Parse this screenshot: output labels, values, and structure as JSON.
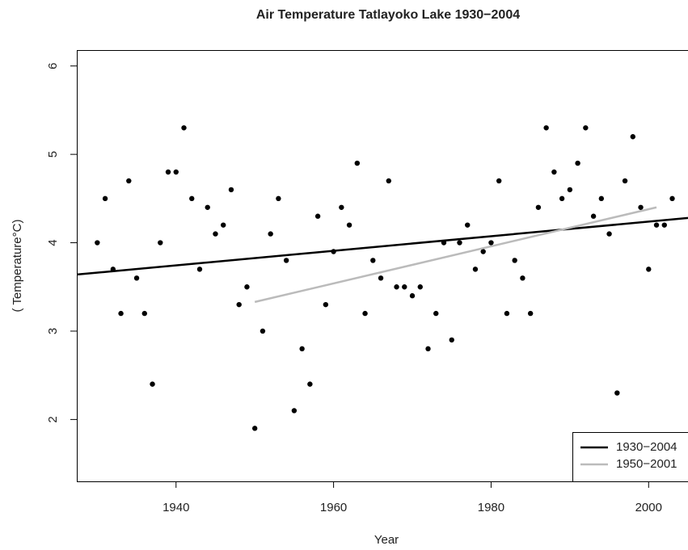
{
  "chart_data": {
    "type": "scatter",
    "title": "Air Temperature Tatlayoko Lake 1930−2004",
    "x_label": "Year",
    "y_label": "( Temperature°C)",
    "x": [
      1930,
      1931,
      1932,
      1933,
      1934,
      1935,
      1936,
      1937,
      1938,
      1939,
      1940,
      1941,
      1942,
      1943,
      1944,
      1945,
      1946,
      1947,
      1948,
      1949,
      1950,
      1951,
      1952,
      1953,
      1954,
      1955,
      1956,
      1957,
      1958,
      1959,
      1960,
      1961,
      1962,
      1963,
      1964,
      1965,
      1966,
      1967,
      1968,
      1969,
      1970,
      1971,
      1972,
      1973,
      1974,
      1975,
      1976,
      1977,
      1978,
      1979,
      1980,
      1981,
      1982,
      1983,
      1984,
      1985,
      1986,
      1987,
      1988,
      1989,
      1990,
      1991,
      1992,
      1993,
      1994,
      1995,
      1996,
      1997,
      1998,
      1999,
      2000,
      2001,
      2002,
      2003
    ],
    "values": [
      4.0,
      4.5,
      3.7,
      3.2,
      4.7,
      3.6,
      3.2,
      2.4,
      4.0,
      4.8,
      4.8,
      5.3,
      4.5,
      3.7,
      4.4,
      4.1,
      4.2,
      4.6,
      3.3,
      3.5,
      1.9,
      3.0,
      4.1,
      4.5,
      3.8,
      2.1,
      2.8,
      2.4,
      4.3,
      3.3,
      3.9,
      4.4,
      4.2,
      4.9,
      3.2,
      3.8,
      3.6,
      4.7,
      3.5,
      3.5,
      3.4,
      3.5,
      2.8,
      3.2,
      4.0,
      2.9,
      4.0,
      4.2,
      3.7,
      3.9,
      4.0,
      4.7,
      3.2,
      3.8,
      3.6,
      3.2,
      4.4,
      5.3,
      4.8,
      4.5,
      4.6,
      4.9,
      5.3,
      4.3,
      4.5,
      4.1,
      2.3,
      4.7,
      5.2,
      4.4,
      3.7,
      4.2,
      4.2,
      4.5
    ],
    "color": "#000000",
    "lines": [
      {
        "name": "1930−2004",
        "color": "#000000",
        "x": [
          1927.4,
          2005
        ],
        "values": [
          3.64,
          4.28
        ]
      },
      {
        "name": "1950−2001",
        "color": "#bbbbbb",
        "x": [
          1950,
          2001
        ],
        "values": [
          3.33,
          4.4
        ]
      }
    ],
    "xlim": [
      1927.4,
      2005
    ],
    "ylim": [
      1.3,
      6.18
    ],
    "xticks": [
      1940,
      1960,
      1980,
      2000
    ],
    "yticks": [
      2,
      3,
      4,
      5,
      6
    ],
    "legend": "bottomright"
  }
}
